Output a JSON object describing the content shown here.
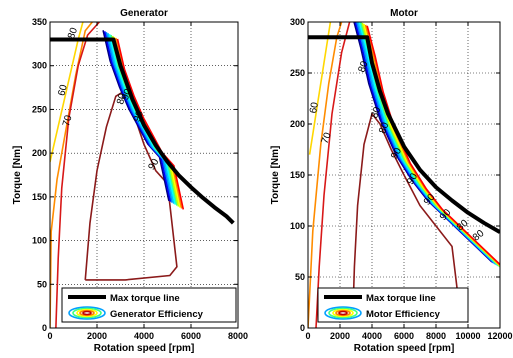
{
  "chart_data": [
    {
      "type": "line",
      "title": "Generator",
      "xlabel": "Rotation speed [rpm]",
      "ylabel": "Torque [Nm]",
      "xlim": [
        0,
        8000
      ],
      "ylim": [
        0,
        350
      ],
      "xticks": [
        0,
        2000,
        4000,
        6000,
        8000
      ],
      "yticks": [
        0,
        50,
        100,
        150,
        200,
        250,
        300,
        350
      ],
      "grid": true,
      "legend_position": "bottom",
      "legend": [
        "Max torque line",
        "Generator Efficiency"
      ],
      "max_torque_line": {
        "color": "#000000",
        "x": [
          0,
          2700,
          3000,
          3500,
          4000,
          4500,
          5000,
          5500,
          6000,
          6500,
          7000,
          7500,
          7800
        ],
        "y": [
          330,
          330,
          300,
          262,
          232,
          209,
          190,
          174,
          161,
          149,
          138,
          128,
          120
        ]
      },
      "efficiency_contours": [
        {
          "level": "60",
          "color": "#ffd700",
          "x": [
            0,
            300,
            600,
            900,
            1200,
            1400
          ],
          "y": [
            190,
            225,
            260,
            295,
            330,
            350
          ]
        },
        {
          "level": "70",
          "color": "#ff8c00",
          "x": [
            0,
            50,
            300,
            700,
            1100,
            1500,
            1800
          ],
          "y": [
            0,
            110,
            170,
            230,
            290,
            340,
            350
          ]
        },
        {
          "level": "80",
          "color": "#d81818",
          "x": [
            250,
            350,
            500,
            800,
            1200,
            1600,
            2100
          ],
          "y": [
            0,
            80,
            160,
            240,
            300,
            335,
            350
          ]
        },
        {
          "level": "90",
          "color": "#8b1a1a",
          "x": [
            1500,
            1700,
            2000,
            2400,
            2800,
            3100,
            3500,
            4000,
            4500,
            5000,
            5400,
            5100,
            3200,
            1800,
            1500
          ],
          "y": [
            55,
            120,
            180,
            230,
            265,
            270,
            250,
            210,
            180,
            165,
            70,
            60,
            55,
            55,
            55
          ]
        }
      ],
      "efficiency_band": {
        "colors": [
          "#000080",
          "#0000ff",
          "#0080ff",
          "#00c0ff",
          "#00ffff",
          "#40ff80",
          "#c0ff00",
          "#ffff00",
          "#ff8000",
          "#ff0000"
        ],
        "x": [
          2600,
          2900,
          3300,
          3700,
          4100,
          4500,
          5000,
          5400
        ],
        "y": [
          335,
          300,
          270,
          245,
          225,
          205,
          190,
          140
        ]
      },
      "contour_labels": [
        "60",
        "70",
        "80",
        "80",
        "90",
        "90",
        "90",
        "70"
      ]
    },
    {
      "type": "line",
      "title": "Motor",
      "xlabel": "Rotation speed [rpm]",
      "ylabel": "Torque [Nm]",
      "xlim": [
        0,
        12000
      ],
      "ylim": [
        0,
        300
      ],
      "xticks": [
        0,
        2000,
        4000,
        6000,
        8000,
        10000,
        12000
      ],
      "yticks": [
        0,
        50,
        100,
        150,
        200,
        250,
        300
      ],
      "grid": true,
      "legend_position": "bottom",
      "legend": [
        "Max torque line",
        "Motor Efficiency"
      ],
      "max_torque_line": {
        "color": "#000000",
        "x": [
          0,
          3700,
          4000,
          4500,
          5000,
          6000,
          7000,
          8000,
          9000,
          10000,
          11000,
          12000
        ],
        "y": [
          285,
          285,
          260,
          232,
          210,
          178,
          155,
          138,
          125,
          113,
          103,
          94
        ]
      },
      "efficiency_contours": [
        {
          "level": "60",
          "color": "#ffd700",
          "x": [
            100,
            500,
            1000,
            1400
          ],
          "y": [
            170,
            210,
            260,
            300
          ]
        },
        {
          "level": "70",
          "color": "#ff8c00",
          "x": [
            0,
            300,
            800,
            1300,
            1800,
            2100
          ],
          "y": [
            0,
            95,
            180,
            240,
            285,
            300
          ]
        },
        {
          "level": "80",
          "color": "#d81818",
          "x": [
            500,
            700,
            1000,
            1500,
            2100,
            2600
          ],
          "y": [
            0,
            60,
            130,
            210,
            270,
            300
          ]
        },
        {
          "level": "90",
          "color": "#8b1a1a",
          "x": [
            2800,
            2900,
            3100,
            3500,
            4000,
            4500,
            5200,
            6000,
            7000,
            8000,
            9000,
            9500,
            9000,
            6000,
            4000,
            2800
          ],
          "y": [
            10,
            60,
            120,
            180,
            210,
            200,
            175,
            150,
            120,
            100,
            80,
            15,
            10,
            10,
            10,
            10
          ]
        }
      ],
      "efficiency_band": {
        "colors": [
          "#000080",
          "#0000ff",
          "#0080ff",
          "#00c0ff",
          "#00ffff",
          "#40ff80",
          "#c0ff00",
          "#ffff00",
          "#ff8000",
          "#ff0000"
        ],
        "x": [
          3300,
          3800,
          4300,
          5000,
          6000,
          7000,
          8000,
          9000,
          10000,
          11000,
          12000
        ],
        "y": [
          300,
          270,
          235,
          200,
          165,
          140,
          120,
          105,
          90,
          75,
          60
        ]
      },
      "contour_labels": [
        "60",
        "70",
        "80",
        "80",
        "80",
        "90",
        "90",
        "90",
        "90",
        "80",
        "80"
      ]
    }
  ]
}
